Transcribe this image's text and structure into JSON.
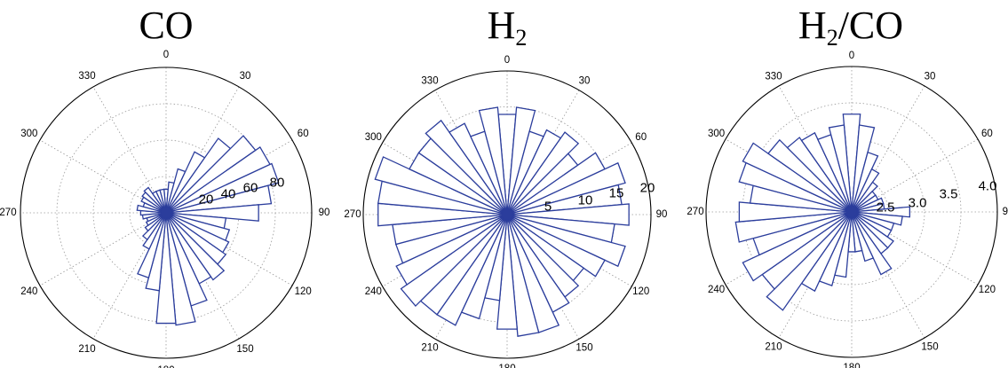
{
  "chart_data": [
    {
      "type": "polar-bar",
      "title": "CO",
      "title_main": "CO",
      "title_sub": "",
      "title_rest": "",
      "angle_unit": "degrees",
      "angle_direction": "clockwise",
      "zero_location": "top",
      "angle_ticks": [
        "0",
        "30",
        "60",
        "90",
        "120",
        "150",
        "180",
        "210",
        "240",
        "270",
        "300",
        "330"
      ],
      "radial_ticks": [
        20,
        40,
        60,
        80
      ],
      "radial_tick_labels": [
        "20",
        "40",
        "60",
        "80"
      ],
      "rlim": [
        0,
        80
      ],
      "grid": true,
      "bar_color": "#2b3d9c",
      "bin_centers": [
        0,
        10,
        20,
        30,
        40,
        50,
        60,
        70,
        80,
        90,
        100,
        110,
        120,
        130,
        140,
        150,
        160,
        170,
        180,
        190,
        200,
        210,
        220,
        230,
        240,
        250,
        260,
        270,
        280,
        290,
        300,
        310,
        320,
        330,
        340,
        350
      ],
      "values": [
        13,
        17,
        25,
        37,
        50,
        60,
        63,
        64,
        58,
        51,
        33,
        36,
        38,
        40,
        45,
        43,
        53,
        62,
        61,
        43,
        37,
        22,
        18,
        14,
        12,
        11,
        13,
        14,
        16,
        13,
        15,
        16,
        17,
        13,
        13,
        13
      ]
    },
    {
      "type": "polar-bar",
      "title": "H2",
      "title_main": "H",
      "title_sub": "2",
      "title_rest": "",
      "angle_unit": "degrees",
      "angle_direction": "clockwise",
      "zero_location": "top",
      "angle_ticks": [
        "0",
        "30",
        "60",
        "90",
        "120",
        "150",
        "180",
        "210",
        "240",
        "270",
        "300",
        "330"
      ],
      "radial_ticks": [
        5,
        10,
        15,
        20
      ],
      "radial_tick_labels": [
        "5",
        "10",
        "15",
        "20"
      ],
      "rlim": [
        0,
        20
      ],
      "grid": true,
      "bar_color": "#2b3d9c",
      "bin_centers": [
        0,
        10,
        20,
        30,
        40,
        50,
        60,
        70,
        80,
        90,
        100,
        110,
        120,
        130,
        140,
        150,
        160,
        170,
        180,
        190,
        200,
        210,
        220,
        230,
        240,
        250,
        260,
        270,
        280,
        290,
        300,
        310,
        320,
        330,
        340,
        350
      ],
      "values": [
        14,
        15,
        12,
        13,
        14,
        12,
        15,
        17,
        16,
        17,
        15,
        17,
        15,
        13,
        14,
        15,
        17,
        17,
        16,
        12,
        15,
        17,
        17,
        18,
        17,
        16,
        16,
        18,
        18,
        19,
        15,
        15,
        16,
        14,
        12,
        15
      ]
    },
    {
      "type": "polar-bar",
      "title": "H2/CO",
      "title_main": "H",
      "title_sub": "2",
      "title_rest": "/CO",
      "angle_unit": "degrees",
      "angle_direction": "clockwise",
      "zero_location": "top",
      "angle_ticks": [
        "0",
        "30",
        "60",
        "90",
        "120",
        "150",
        "180",
        "210",
        "240",
        "270",
        "300",
        "330"
      ],
      "radial_ticks": [
        2.5,
        3.0,
        3.5,
        4.0
      ],
      "radial_tick_labels": [
        "2.5",
        "3.0",
        "3.5",
        "4.0"
      ],
      "rlim": [
        2.0,
        4.0
      ],
      "grid": true,
      "bar_color": "#2b3d9c",
      "bin_centers": [
        0,
        10,
        20,
        30,
        40,
        50,
        60,
        70,
        80,
        90,
        100,
        110,
        120,
        130,
        140,
        150,
        160,
        170,
        180,
        190,
        200,
        210,
        220,
        230,
        240,
        250,
        260,
        270,
        280,
        290,
        300,
        310,
        320,
        330,
        340,
        350
      ],
      "values": [
        3.35,
        3.2,
        2.85,
        2.65,
        2.5,
        2.4,
        2.4,
        2.45,
        2.45,
        2.8,
        2.7,
        2.6,
        2.6,
        2.7,
        2.7,
        2.95,
        2.7,
        2.55,
        2.55,
        2.9,
        3.05,
        3.2,
        3.65,
        3.5,
        3.65,
        3.4,
        3.6,
        3.55,
        3.4,
        3.6,
        3.65,
        3.4,
        3.25,
        3.2,
        3.1,
        3.2
      ]
    }
  ]
}
